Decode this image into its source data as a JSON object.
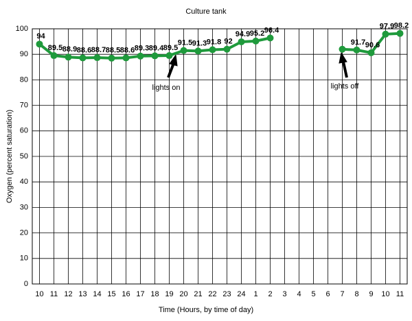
{
  "chart_data": {
    "type": "line",
    "title": "Culture tank",
    "x_label": "Time (Hours, by time of day)",
    "y_label": "Oxygen (percent saturation)",
    "categories": [
      "10",
      "11",
      "12",
      "13",
      "14",
      "15",
      "16",
      "17",
      "18",
      "19",
      "20",
      "21",
      "22",
      "23",
      "24",
      "1",
      "2",
      "3",
      "4",
      "5",
      "6",
      "7",
      "8",
      "9",
      "10",
      "11"
    ],
    "series": [
      {
        "name": "Oxygen",
        "color": "#1f9a3c",
        "values": [
          94,
          89.5,
          88.9,
          88.6,
          88.7,
          88.5,
          88.6,
          89.3,
          89.4,
          89.5,
          91.5,
          91.3,
          91.8,
          92,
          94.9,
          95.2,
          96.4,
          null,
          null,
          null,
          null,
          92,
          91.7,
          90.6,
          97.9,
          98.2
        ],
        "value_labels": [
          "94",
          "89.5",
          "88.9",
          "88.6",
          "88.7",
          "88.5",
          "88.6",
          "89.3",
          "89.4",
          "89.5",
          "91.5",
          "91.3",
          "91.8",
          "92",
          "94.9",
          "95.2",
          "96.4",
          null,
          null,
          null,
          null,
          null,
          "91.7",
          "90.6",
          "97.9",
          "98.2"
        ]
      }
    ],
    "annotations": [
      "lights on",
      "lights off"
    ],
    "ylim": [
      0,
      100
    ],
    "yticks": [
      0,
      10,
      20,
      30,
      40,
      50,
      60,
      70,
      80,
      90,
      100
    ],
    "grid": true
  }
}
